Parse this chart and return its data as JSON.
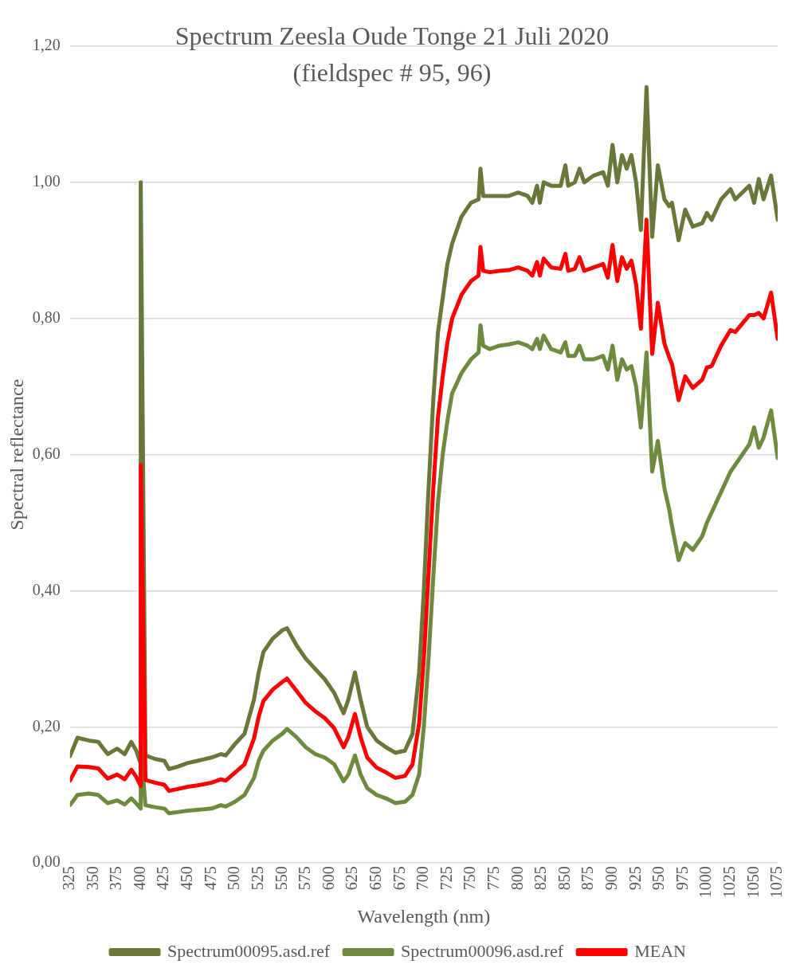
{
  "chart_data": {
    "type": "line",
    "title": "Spectrum Zeesla Oude Tonge 21 Juli 2020",
    "subtitle": "(fieldspec # 95, 96)",
    "xlabel": "Wavelength (nm)",
    "ylabel": "Spectral reflectance",
    "x": [
      325,
      333,
      345,
      355,
      365,
      375,
      383,
      390,
      395,
      400,
      400,
      405,
      415,
      425,
      430,
      440,
      450,
      460,
      475,
      485,
      490,
      500,
      510,
      520,
      525,
      530,
      540,
      550,
      555,
      565,
      575,
      585,
      595,
      605,
      615,
      620,
      627,
      633,
      640,
      650,
      660,
      670,
      680,
      688,
      695,
      700,
      705,
      710,
      715,
      720,
      725,
      730,
      740,
      750,
      758,
      760,
      763,
      770,
      780,
      790,
      800,
      810,
      815,
      820,
      823,
      827,
      835,
      845,
      850,
      853,
      860,
      865,
      870,
      880,
      890,
      895,
      900,
      905,
      910,
      915,
      920,
      925,
      930,
      936,
      942,
      948,
      955,
      960,
      963,
      970,
      977,
      985,
      995,
      1000,
      1005,
      1015,
      1025,
      1030,
      1045,
      1050,
      1055,
      1060,
      1068,
      1075
    ],
    "series": [
      {
        "name": "Spectrum00095.asd.ref",
        "color": "#68783a",
        "values": [
          0.157,
          0.184,
          0.18,
          0.178,
          0.16,
          0.168,
          0.16,
          0.178,
          0.166,
          0.146,
          1.0,
          0.158,
          0.153,
          0.15,
          0.138,
          0.142,
          0.147,
          0.15,
          0.155,
          0.16,
          0.158,
          0.175,
          0.19,
          0.24,
          0.28,
          0.31,
          0.33,
          0.342,
          0.345,
          0.32,
          0.3,
          0.285,
          0.27,
          0.25,
          0.22,
          0.24,
          0.28,
          0.24,
          0.2,
          0.18,
          0.17,
          0.162,
          0.165,
          0.19,
          0.28,
          0.4,
          0.55,
          0.68,
          0.78,
          0.83,
          0.88,
          0.91,
          0.95,
          0.97,
          0.975,
          1.02,
          0.98,
          0.98,
          0.98,
          0.98,
          0.985,
          0.98,
          0.97,
          0.995,
          0.97,
          1.0,
          0.995,
          0.995,
          1.025,
          0.995,
          1.0,
          1.02,
          1.0,
          1.01,
          1.015,
          0.995,
          1.055,
          1.0,
          1.04,
          1.02,
          1.04,
          1.0,
          0.93,
          1.14,
          0.92,
          1.025,
          0.975,
          0.965,
          0.97,
          0.915,
          0.96,
          0.935,
          0.94,
          0.955,
          0.945,
          0.975,
          0.99,
          0.975,
          0.995,
          0.97,
          1.005,
          0.975,
          1.01,
          0.945
        ]
      },
      {
        "name": "Spectrum00096.asd.ref",
        "color": "#6e8a3e",
        "values": [
          0.085,
          0.1,
          0.102,
          0.1,
          0.088,
          0.092,
          0.086,
          0.095,
          0.088,
          0.08,
          0.17,
          0.085,
          0.082,
          0.08,
          0.073,
          0.075,
          0.077,
          0.078,
          0.08,
          0.085,
          0.083,
          0.09,
          0.1,
          0.125,
          0.15,
          0.165,
          0.18,
          0.19,
          0.197,
          0.185,
          0.17,
          0.16,
          0.155,
          0.145,
          0.12,
          0.13,
          0.158,
          0.13,
          0.11,
          0.1,
          0.095,
          0.088,
          0.09,
          0.1,
          0.13,
          0.2,
          0.3,
          0.42,
          0.53,
          0.6,
          0.65,
          0.69,
          0.72,
          0.74,
          0.75,
          0.79,
          0.76,
          0.755,
          0.76,
          0.762,
          0.765,
          0.76,
          0.755,
          0.77,
          0.755,
          0.775,
          0.755,
          0.75,
          0.765,
          0.745,
          0.745,
          0.76,
          0.74,
          0.74,
          0.745,
          0.725,
          0.76,
          0.71,
          0.74,
          0.725,
          0.73,
          0.7,
          0.64,
          0.75,
          0.575,
          0.62,
          0.55,
          0.52,
          0.495,
          0.445,
          0.47,
          0.46,
          0.48,
          0.5,
          0.515,
          0.545,
          0.575,
          0.585,
          0.615,
          0.64,
          0.61,
          0.625,
          0.665,
          0.595
        ]
      },
      {
        "name": "MEAN",
        "color": "#ff0000",
        "values": [
          0.121,
          0.142,
          0.141,
          0.139,
          0.124,
          0.13,
          0.123,
          0.137,
          0.127,
          0.113,
          0.585,
          0.122,
          0.118,
          0.115,
          0.106,
          0.109,
          0.112,
          0.114,
          0.118,
          0.123,
          0.121,
          0.133,
          0.145,
          0.183,
          0.215,
          0.238,
          0.255,
          0.266,
          0.271,
          0.253,
          0.235,
          0.223,
          0.213,
          0.198,
          0.17,
          0.185,
          0.219,
          0.185,
          0.155,
          0.14,
          0.133,
          0.125,
          0.128,
          0.145,
          0.205,
          0.3,
          0.425,
          0.55,
          0.655,
          0.715,
          0.765,
          0.8,
          0.835,
          0.855,
          0.863,
          0.905,
          0.87,
          0.868,
          0.87,
          0.871,
          0.875,
          0.87,
          0.863,
          0.883,
          0.863,
          0.888,
          0.875,
          0.873,
          0.895,
          0.87,
          0.873,
          0.89,
          0.87,
          0.875,
          0.88,
          0.86,
          0.908,
          0.855,
          0.89,
          0.873,
          0.885,
          0.85,
          0.785,
          0.945,
          0.748,
          0.823,
          0.763,
          0.743,
          0.733,
          0.68,
          0.715,
          0.698,
          0.71,
          0.728,
          0.73,
          0.76,
          0.783,
          0.78,
          0.805,
          0.805,
          0.808,
          0.8,
          0.838,
          0.77
        ]
      }
    ],
    "xlim": [
      325,
      1075
    ],
    "xticks": [
      325,
      350,
      375,
      400,
      425,
      450,
      475,
      500,
      525,
      550,
      575,
      600,
      625,
      650,
      675,
      700,
      725,
      750,
      775,
      800,
      825,
      850,
      875,
      900,
      925,
      950,
      975,
      1000,
      1025,
      1050,
      1075
    ],
    "ylim": [
      0,
      1.2
    ],
    "yticks": [
      {
        "value": 0,
        "label": "0,00"
      },
      {
        "value": 0.2,
        "label": "0,20"
      },
      {
        "value": 0.4,
        "label": "0,40"
      },
      {
        "value": 0.6,
        "label": "0,60"
      },
      {
        "value": 0.8,
        "label": "0,80"
      },
      {
        "value": 1.0,
        "label": "1,00"
      },
      {
        "value": 1.2,
        "label": "1,20"
      }
    ],
    "grid": "y",
    "legend": "bottom",
    "marker": "none",
    "line_style": "solid"
  }
}
